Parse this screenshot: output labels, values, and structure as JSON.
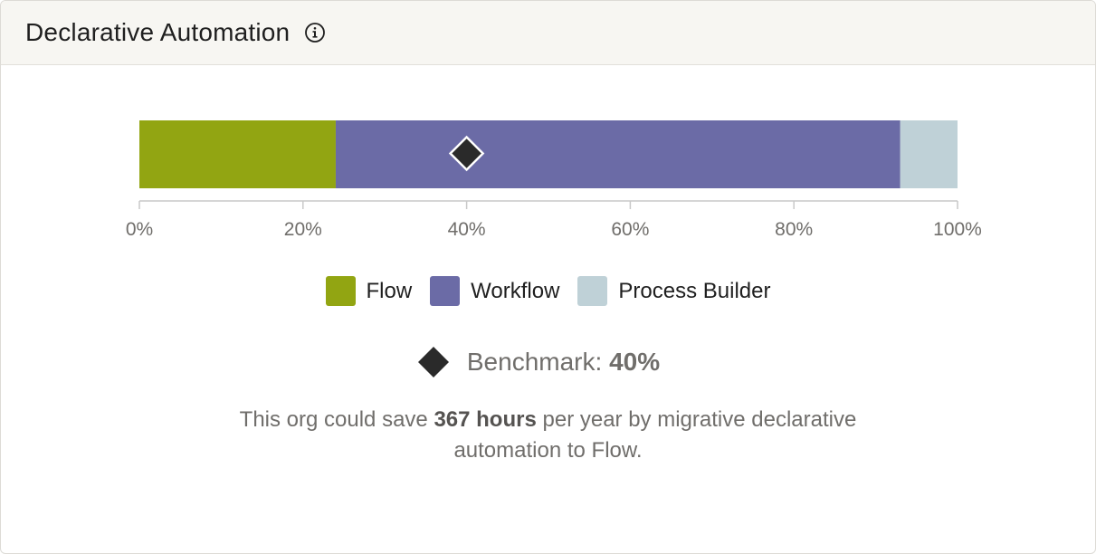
{
  "card": {
    "title": "Declarative Automation",
    "info_icon": "info-circle-icon"
  },
  "chart_data": {
    "type": "bar",
    "orientation": "horizontal",
    "stacked": true,
    "title": "",
    "xlim": [
      0,
      100
    ],
    "tick_labels": [
      "0%",
      "20%",
      "40%",
      "60%",
      "80%",
      "100%"
    ],
    "tick_values": [
      0,
      20,
      40,
      60,
      80,
      100
    ],
    "series": [
      {
        "name": "Flow",
        "value": 24,
        "color": "#92a512"
      },
      {
        "name": "Workflow",
        "value": 69,
        "color": "#6b6ba6"
      },
      {
        "name": "Process Builder",
        "value": 7,
        "color": "#bfd1d7"
      }
    ],
    "benchmark": {
      "value": 40,
      "color": "#2a2a2a"
    },
    "grid": false,
    "legend_position": "bottom"
  },
  "legend": [
    {
      "label": "Flow",
      "color": "#92a512"
    },
    {
      "label": "Workflow",
      "color": "#6b6ba6"
    },
    {
      "label": "Process Builder",
      "color": "#bfd1d7"
    }
  ],
  "benchmark_label": {
    "prefix": "Benchmark:",
    "value": "40%"
  },
  "savings": {
    "part1": "This org could save",
    "hours": "367 hours",
    "part2": "per year by migrative declarative",
    "part3": "automation to Flow."
  },
  "colors": {
    "axis": "#c9c9c9",
    "tick_text": "#706e6b",
    "diamond": "#2a2a2a"
  }
}
